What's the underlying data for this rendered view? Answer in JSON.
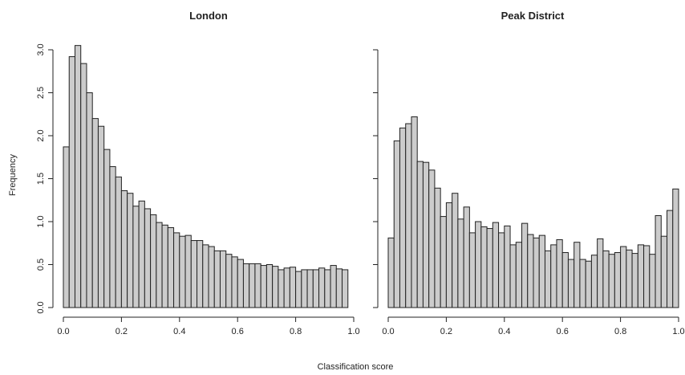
{
  "figure": {
    "ylabel": "Frequency",
    "xlabel": "Classification score"
  },
  "colors": {
    "bar_fill": "#cccccc",
    "bar_stroke": "#222222",
    "axis": "#222222",
    "background": "#ffffff"
  },
  "chart_data": [
    {
      "type": "bar",
      "title": "London",
      "xlabel": "Classification score",
      "ylabel": "Frequency",
      "bin_width": 0.02,
      "xlim": [
        0,
        1
      ],
      "ylim": [
        0,
        3.1
      ],
      "x_ticks": [
        "0.0",
        "0.2",
        "0.4",
        "0.6",
        "0.8",
        "1.0"
      ],
      "y_ticks": [
        "0.0",
        "0.5",
        "1.0",
        "1.5",
        "2.0",
        "2.5",
        "3.0"
      ],
      "grid": false,
      "values": [
        1.87,
        2.92,
        3.05,
        2.84,
        2.5,
        2.2,
        2.11,
        1.84,
        1.64,
        1.52,
        1.36,
        1.33,
        1.18,
        1.24,
        1.15,
        1.08,
        0.99,
        0.96,
        0.93,
        0.87,
        0.83,
        0.84,
        0.78,
        0.78,
        0.73,
        0.71,
        0.66,
        0.66,
        0.62,
        0.59,
        0.56,
        0.51,
        0.51,
        0.51,
        0.49,
        0.5,
        0.48,
        0.44,
        0.46,
        0.47,
        0.42,
        0.44,
        0.44,
        0.44,
        0.46,
        0.44,
        0.49,
        0.45,
        0.44
      ]
    },
    {
      "type": "bar",
      "title": "Peak District",
      "xlabel": "Classification score",
      "ylabel": "Frequency",
      "bin_width": 0.02,
      "xlim": [
        0,
        1
      ],
      "ylim": [
        0,
        3.1
      ],
      "x_ticks": [
        "0.0",
        "0.2",
        "0.4",
        "0.6",
        "0.8",
        "1.0"
      ],
      "y_ticks": [
        "0.0",
        "0.5",
        "1.0",
        "1.5",
        "2.0",
        "2.5",
        "3.0"
      ],
      "grid": false,
      "values": [
        0.81,
        1.94,
        2.09,
        2.14,
        2.22,
        1.7,
        1.69,
        1.6,
        1.39,
        1.06,
        1.22,
        1.33,
        1.03,
        1.17,
        0.87,
        1.0,
        0.94,
        0.92,
        0.99,
        0.87,
        0.95,
        0.73,
        0.76,
        0.98,
        0.85,
        0.81,
        0.84,
        0.66,
        0.73,
        0.79,
        0.64,
        0.56,
        0.76,
        0.56,
        0.54,
        0.61,
        0.8,
        0.66,
        0.62,
        0.64,
        0.71,
        0.67,
        0.63,
        0.73,
        0.72,
        0.62,
        1.07,
        0.83,
        1.13,
        1.38
      ]
    }
  ]
}
